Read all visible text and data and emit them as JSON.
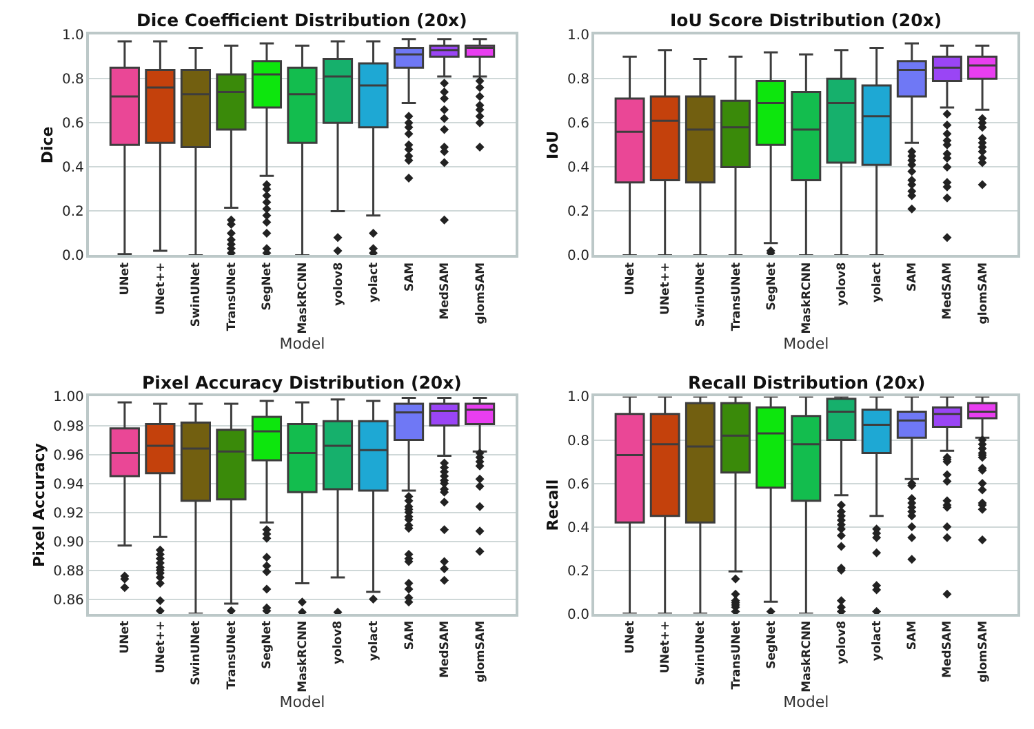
{
  "chart_data": [
    {
      "type": "box",
      "title": "Dice Coefficient Distribution (20x)",
      "xlabel": "Model",
      "ylabel": "Dice",
      "categories": [
        "UNet",
        "UNet++",
        "SwinUNet",
        "TransUNet",
        "SegNet",
        "MaskRCNN",
        "yolov8",
        "yolact",
        "SAM",
        "MedSAM",
        "glomSAM"
      ],
      "colors": [
        "#ea4796",
        "#c4410c",
        "#725f10",
        "#3a8a0a",
        "#0de60d",
        "#13bd4e",
        "#16b06c",
        "#1ea8d4",
        "#6f78f5",
        "#9a45f5",
        "#e83ef0"
      ],
      "boxes": [
        {
          "low": 0.005,
          "q1": 0.5,
          "median": 0.72,
          "q3": 0.85,
          "high": 0.97
        },
        {
          "low": 0.02,
          "q1": 0.51,
          "median": 0.76,
          "q3": 0.84,
          "high": 0.97
        },
        {
          "low": 0.0,
          "q1": 0.49,
          "median": 0.73,
          "q3": 0.84,
          "high": 0.94
        },
        {
          "low": 0.215,
          "q1": 0.57,
          "median": 0.74,
          "q3": 0.82,
          "high": 0.95,
          "outliers": [
            0.16,
            0.14,
            0.1,
            0.07,
            0.05,
            0.03,
            0.01
          ]
        },
        {
          "low": 0.36,
          "q1": 0.67,
          "median": 0.82,
          "q3": 0.88,
          "high": 0.96,
          "outliers": [
            0.32,
            0.3,
            0.27,
            0.24,
            0.21,
            0.18,
            0.15,
            0.1,
            0.03,
            0.01
          ]
        },
        {
          "low": 0.0,
          "q1": 0.51,
          "median": 0.73,
          "q3": 0.85,
          "high": 0.95
        },
        {
          "low": 0.2,
          "q1": 0.6,
          "median": 0.81,
          "q3": 0.89,
          "high": 0.97,
          "outliers": [
            0.08,
            0.02
          ]
        },
        {
          "low": 0.18,
          "q1": 0.58,
          "median": 0.77,
          "q3": 0.87,
          "high": 0.97,
          "outliers": [
            0.1,
            0.03,
            0.01
          ]
        },
        {
          "low": 0.69,
          "q1": 0.85,
          "median": 0.91,
          "q3": 0.94,
          "high": 0.98,
          "outliers": [
            0.63,
            0.6,
            0.58,
            0.55,
            0.5,
            0.48,
            0.45,
            0.43,
            0.35
          ]
        },
        {
          "low": 0.81,
          "q1": 0.9,
          "median": 0.93,
          "q3": 0.95,
          "high": 0.98,
          "outliers": [
            0.78,
            0.74,
            0.71,
            0.66,
            0.62,
            0.57,
            0.49,
            0.47,
            0.42,
            0.16
          ]
        },
        {
          "low": 0.81,
          "q1": 0.9,
          "median": 0.94,
          "q3": 0.95,
          "high": 0.98,
          "outliers": [
            0.79,
            0.76,
            0.72,
            0.68,
            0.66,
            0.63,
            0.6,
            0.49
          ]
        }
      ],
      "ylim": [
        0,
        1.0
      ],
      "yticks": [
        {
          "value": 0,
          "label": "0.0"
        },
        0.2,
        0.4,
        0.6,
        0.8,
        {
          "value": 1,
          "label": "1.0"
        }
      ],
      "grid": "y",
      "marker": "diamond"
    },
    {
      "type": "box",
      "title": "IoU Score Distribution (20x)",
      "xlabel": "Model",
      "ylabel": "IoU",
      "categories": [
        "UNet",
        "UNet++",
        "SwinUNet",
        "TransUNet",
        "SegNet",
        "MaskRCNN",
        "yolov8",
        "yolact",
        "SAM",
        "MedSAM",
        "glomSAM"
      ],
      "colors": [
        "#ea4796",
        "#c4410c",
        "#725f10",
        "#3a8a0a",
        "#0de60d",
        "#13bd4e",
        "#16b06c",
        "#1ea8d4",
        "#6f78f5",
        "#9a45f5",
        "#e83ef0"
      ],
      "boxes": [
        {
          "low": 0.0,
          "q1": 0.33,
          "median": 0.56,
          "q3": 0.71,
          "high": 0.9
        },
        {
          "low": 0.0,
          "q1": 0.34,
          "median": 0.61,
          "q3": 0.72,
          "high": 0.93
        },
        {
          "low": 0.0,
          "q1": 0.33,
          "median": 0.57,
          "q3": 0.72,
          "high": 0.89
        },
        {
          "low": 0.0,
          "q1": 0.4,
          "median": 0.58,
          "q3": 0.7,
          "high": 0.9
        },
        {
          "low": 0.055,
          "q1": 0.5,
          "median": 0.69,
          "q3": 0.79,
          "high": 0.92,
          "outliers": [
            0.02,
            0.01
          ]
        },
        {
          "low": 0.0,
          "q1": 0.34,
          "median": 0.57,
          "q3": 0.74,
          "high": 0.91
        },
        {
          "low": 0.0,
          "q1": 0.42,
          "median": 0.69,
          "q3": 0.8,
          "high": 0.93
        },
        {
          "low": 0.0,
          "q1": 0.41,
          "median": 0.63,
          "q3": 0.77,
          "high": 0.94
        },
        {
          "low": 0.51,
          "q1": 0.72,
          "median": 0.84,
          "q3": 0.88,
          "high": 0.96,
          "outliers": [
            0.47,
            0.45,
            0.43,
            0.41,
            0.38,
            0.34,
            0.32,
            0.29,
            0.27,
            0.21
          ]
        },
        {
          "low": 0.67,
          "q1": 0.79,
          "median": 0.85,
          "q3": 0.9,
          "high": 0.95,
          "outliers": [
            0.64,
            0.59,
            0.55,
            0.52,
            0.5,
            0.46,
            0.44,
            0.4,
            0.33,
            0.31,
            0.26,
            0.08
          ]
        },
        {
          "low": 0.66,
          "q1": 0.8,
          "median": 0.86,
          "q3": 0.9,
          "high": 0.95,
          "outliers": [
            0.62,
            0.6,
            0.58,
            0.53,
            0.51,
            0.49,
            0.47,
            0.44,
            0.42,
            0.32
          ]
        }
      ],
      "ylim": [
        0,
        1.0
      ],
      "yticks": [
        {
          "value": 0,
          "label": "0.0"
        },
        0.2,
        0.4,
        0.6,
        0.8,
        {
          "value": 1,
          "label": "1.0"
        }
      ],
      "grid": "y",
      "marker": "diamond"
    },
    {
      "type": "box",
      "title": "Pixel Accuracy Distribution (20x)",
      "xlabel": "Model",
      "ylabel": "Pixel Accuracy",
      "categories": [
        "UNet",
        "UNet++",
        "SwinUNet",
        "TransUNet",
        "SegNet",
        "MaskRCNN",
        "yolov8",
        "yolact",
        "SAM",
        "MedSAM",
        "glomSAM"
      ],
      "colors": [
        "#ea4796",
        "#c4410c",
        "#725f10",
        "#3a8a0a",
        "#0de60d",
        "#13bd4e",
        "#16b06c",
        "#1ea8d4",
        "#6f78f5",
        "#9a45f5",
        "#e83ef0"
      ],
      "boxes": [
        {
          "low": 0.897,
          "q1": 0.945,
          "median": 0.961,
          "q3": 0.978,
          "high": 0.996,
          "outliers": [
            0.876,
            0.874,
            0.868
          ]
        },
        {
          "low": 0.903,
          "q1": 0.947,
          "median": 0.966,
          "q3": 0.981,
          "high": 0.995,
          "outliers": [
            0.894,
            0.891,
            0.888,
            0.885,
            0.882,
            0.88,
            0.878,
            0.875,
            0.871,
            0.859,
            0.852
          ]
        },
        {
          "low": 0.85,
          "q1": 0.928,
          "median": 0.964,
          "q3": 0.982,
          "high": 0.995
        },
        {
          "low": 0.857,
          "q1": 0.929,
          "median": 0.962,
          "q3": 0.977,
          "high": 0.995,
          "outliers": [
            0.852
          ]
        },
        {
          "low": 0.913,
          "q1": 0.956,
          "median": 0.976,
          "q3": 0.986,
          "high": 0.997,
          "outliers": [
            0.908,
            0.905,
            0.902,
            0.889,
            0.883,
            0.879,
            0.867,
            0.854,
            0.852
          ]
        },
        {
          "low": 0.871,
          "q1": 0.934,
          "median": 0.961,
          "q3": 0.981,
          "high": 0.996,
          "outliers": [
            0.858,
            0.851
          ]
        },
        {
          "low": 0.875,
          "q1": 0.936,
          "median": 0.966,
          "q3": 0.983,
          "high": 0.998,
          "outliers": [
            0.851
          ]
        },
        {
          "low": 0.865,
          "q1": 0.935,
          "median": 0.963,
          "q3": 0.983,
          "high": 0.997,
          "outliers": [
            0.86
          ]
        },
        {
          "low": 0.935,
          "q1": 0.97,
          "median": 0.989,
          "q3": 0.995,
          "high": 0.999,
          "outliers": [
            0.931,
            0.928,
            0.924,
            0.922,
            0.92,
            0.917,
            0.915,
            0.911,
            0.909,
            0.891,
            0.888,
            0.886,
            0.871,
            0.867,
            0.861,
            0.858
          ]
        },
        {
          "low": 0.959,
          "q1": 0.98,
          "median": 0.99,
          "q3": 0.995,
          "high": 0.999,
          "outliers": [
            0.954,
            0.951,
            0.948,
            0.945,
            0.942,
            0.94,
            0.936,
            0.934,
            0.927,
            0.908,
            0.886,
            0.881,
            0.873
          ]
        },
        {
          "low": 0.962,
          "q1": 0.981,
          "median": 0.991,
          "q3": 0.995,
          "high": 0.999,
          "outliers": [
            0.961,
            0.958,
            0.955,
            0.952,
            0.943,
            0.938,
            0.924,
            0.907,
            0.893
          ]
        }
      ],
      "ylim": [
        0.85,
        1.0
      ],
      "yticks": [
        0.86,
        0.88,
        {
          "value": 0.9,
          "label": "0.90"
        },
        0.92,
        0.94,
        0.96,
        0.98,
        {
          "value": 1,
          "label": "1.00"
        }
      ],
      "grid": "y",
      "marker": "diamond"
    },
    {
      "type": "box",
      "title": "Recall Distribution (20x)",
      "xlabel": "Model",
      "ylabel": "Recall",
      "categories": [
        "UNet",
        "UNet++",
        "SwinUNet",
        "TransUNet",
        "SegNet",
        "MaskRCNN",
        "yolov8",
        "yolact",
        "SAM",
        "MedSAM",
        "glomSAM"
      ],
      "colors": [
        "#ea4796",
        "#c4410c",
        "#725f10",
        "#3a8a0a",
        "#0de60d",
        "#13bd4e",
        "#16b06c",
        "#1ea8d4",
        "#6f78f5",
        "#9a45f5",
        "#e83ef0"
      ],
      "boxes": [
        {
          "low": 0.0,
          "q1": 0.42,
          "median": 0.73,
          "q3": 0.92,
          "high": 1.0
        },
        {
          "low": 0.0,
          "q1": 0.45,
          "median": 0.78,
          "q3": 0.92,
          "high": 1.0
        },
        {
          "low": 0.0,
          "q1": 0.42,
          "median": 0.77,
          "q3": 0.97,
          "high": 1.0
        },
        {
          "low": 0.195,
          "q1": 0.65,
          "median": 0.82,
          "q3": 0.97,
          "high": 1.0,
          "outliers": [
            0.16,
            0.09,
            0.06,
            0.05,
            0.04,
            0.03,
            0.01
          ]
        },
        {
          "low": 0.055,
          "q1": 0.58,
          "median": 0.83,
          "q3": 0.95,
          "high": 1.0,
          "outliers": [
            0.01
          ]
        },
        {
          "low": 0.0,
          "q1": 0.52,
          "median": 0.78,
          "q3": 0.91,
          "high": 1.0
        },
        {
          "low": 0.545,
          "q1": 0.8,
          "median": 0.93,
          "q3": 0.99,
          "high": 1.0,
          "outliers": [
            0.5,
            0.47,
            0.45,
            0.43,
            0.41,
            0.39,
            0.36,
            0.31,
            0.21,
            0.2,
            0.06,
            0.03,
            0.01
          ]
        },
        {
          "low": 0.45,
          "q1": 0.74,
          "median": 0.87,
          "q3": 0.94,
          "high": 1.0,
          "outliers": [
            0.39,
            0.37,
            0.35,
            0.28,
            0.13,
            0.11,
            0.01
          ]
        },
        {
          "low": 0.62,
          "q1": 0.81,
          "median": 0.89,
          "q3": 0.93,
          "high": 1.0,
          "outliers": [
            0.6,
            0.59,
            0.53,
            0.51,
            0.49,
            0.47,
            0.45,
            0.4,
            0.35,
            0.25
          ]
        },
        {
          "low": 0.75,
          "q1": 0.86,
          "median": 0.92,
          "q3": 0.95,
          "high": 1.0,
          "outliers": [
            0.72,
            0.71,
            0.7,
            0.64,
            0.61,
            0.52,
            0.5,
            0.49,
            0.4,
            0.35,
            0.09
          ]
        },
        {
          "low": 0.81,
          "q1": 0.9,
          "median": 0.93,
          "q3": 0.97,
          "high": 1.0,
          "outliers": [
            0.8,
            0.78,
            0.76,
            0.74,
            0.73,
            0.72,
            0.67,
            0.66,
            0.6,
            0.57,
            0.51,
            0.5,
            0.48,
            0.34
          ]
        }
      ],
      "ylim": [
        0,
        1.0
      ],
      "yticks": [
        {
          "value": 0,
          "label": "0.0"
        },
        0.2,
        0.4,
        0.6,
        0.8,
        {
          "value": 1,
          "label": "1.0"
        }
      ],
      "grid": "y",
      "marker": "diamond"
    }
  ]
}
